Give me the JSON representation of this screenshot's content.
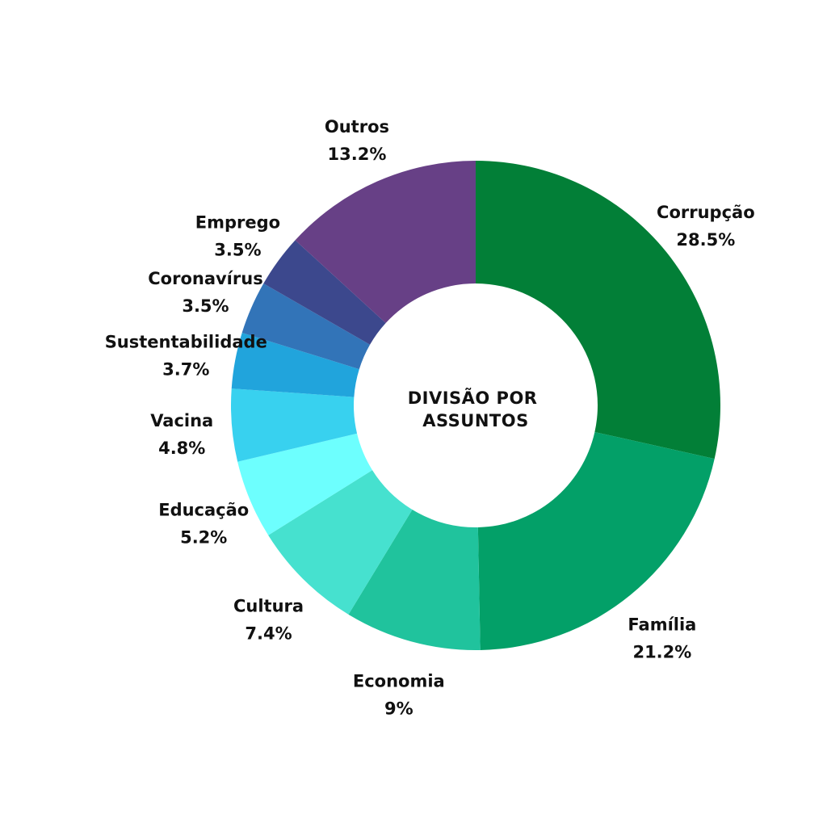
{
  "chart_data": {
    "type": "pie",
    "center_title": [
      "DIVISÃO POR",
      "ASSUNTOS"
    ],
    "slices": [
      {
        "label": "Corrupção",
        "value": 28.5,
        "value_label": "28.5%",
        "color": "#027F37"
      },
      {
        "label": "Família",
        "value": 21.2,
        "value_label": "21.2%",
        "color": "#03A068"
      },
      {
        "label": "Economia",
        "value": 9,
        "value_label": "9%",
        "color": "#20C39D"
      },
      {
        "label": "Cultura",
        "value": 7.4,
        "value_label": "7.4%",
        "color": "#46E1CF"
      },
      {
        "label": "Educação",
        "value": 5.2,
        "value_label": "5.2%",
        "color": "#6DFFFE"
      },
      {
        "label": "Vacina",
        "value": 4.8,
        "value_label": "4.8%",
        "color": "#38D1EF"
      },
      {
        "label": "Sustentabilidade",
        "value": 3.7,
        "value_label": "3.7%",
        "color": "#21A4DC"
      },
      {
        "label": "Coronavírus",
        "value": 3.5,
        "value_label": "3.5%",
        "color": "#3274B8"
      },
      {
        "label": "Emprego",
        "value": 3.5,
        "value_label": "3.5%",
        "color": "#3C488D"
      },
      {
        "label": "Outros",
        "value": 13.2,
        "value_label": "13.2%",
        "color": "#674086"
      }
    ]
  }
}
